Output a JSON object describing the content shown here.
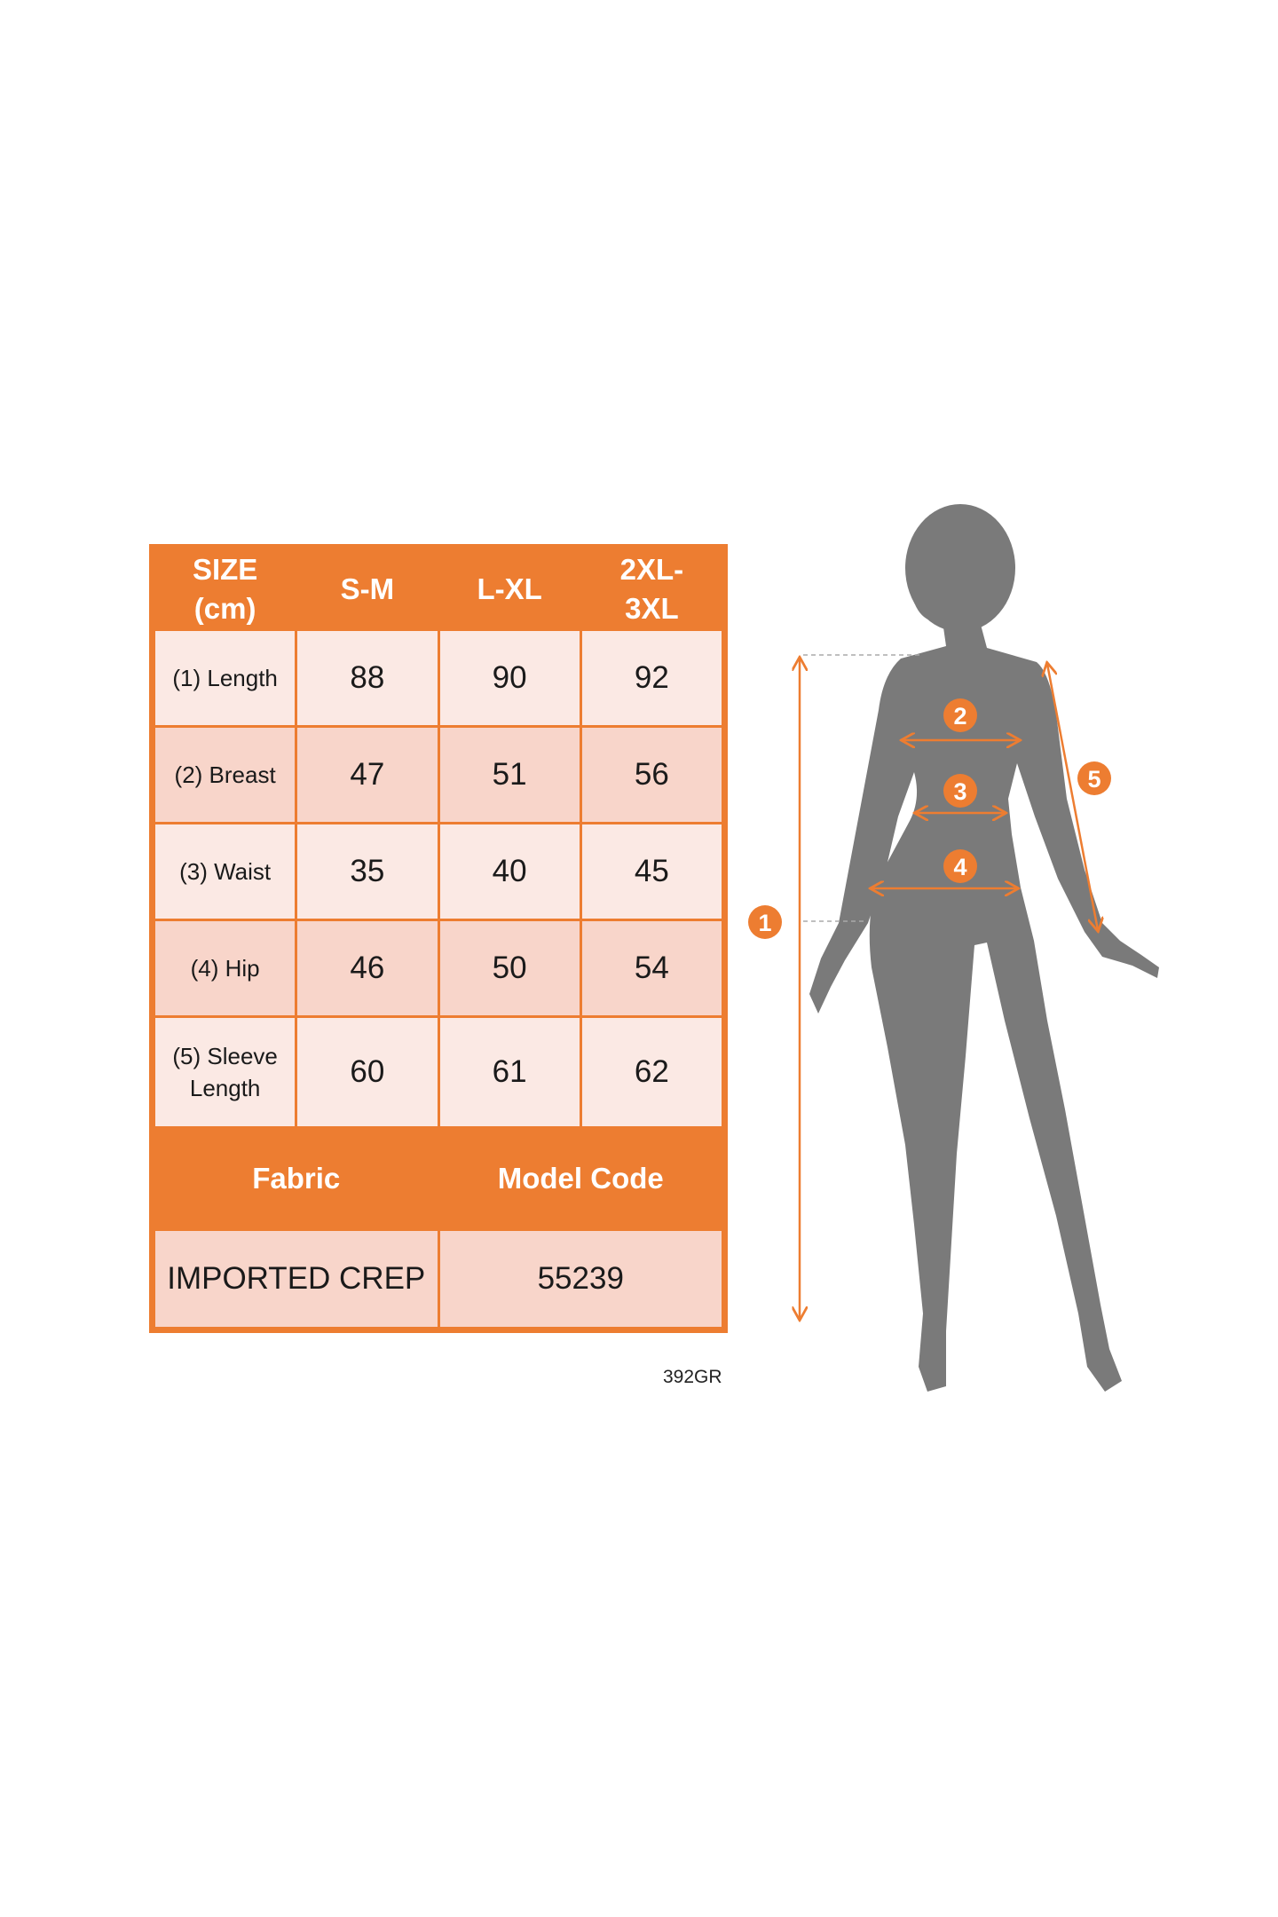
{
  "colors": {
    "accent": "#ED7D31",
    "row_dark": "#F8D5CA",
    "row_light": "#FBE9E4",
    "silhouette": "#7A7A7A"
  },
  "table": {
    "header": [
      "SIZE (cm)",
      "S-M",
      "L-XL",
      "2XL-3XL"
    ],
    "header_lines": [
      [
        "SIZE",
        "(cm)"
      ],
      [
        "S-M"
      ],
      [
        "L-XL"
      ],
      [
        "2XL-",
        "3XL"
      ]
    ],
    "rows": [
      {
        "label": "(1) Length",
        "values": [
          "88",
          "90",
          "92"
        ]
      },
      {
        "label": "(2) Breast",
        "values": [
          "47",
          "51",
          "56"
        ]
      },
      {
        "label": "(3) Waist",
        "values": [
          "35",
          "40",
          "45"
        ]
      },
      {
        "label": "(4) Hip",
        "values": [
          "46",
          "50",
          "54"
        ]
      },
      {
        "label_lines": [
          "(5) Sleeve",
          "Length"
        ],
        "values": [
          "60",
          "61",
          "62"
        ]
      }
    ],
    "fabric_header": "Fabric",
    "model_code_header": "Model Code",
    "fabric": "IMPORTED CREP",
    "model_code": "55239"
  },
  "code": "392GR",
  "figure": {
    "markers": [
      "1",
      "2",
      "3",
      "4",
      "5"
    ]
  }
}
